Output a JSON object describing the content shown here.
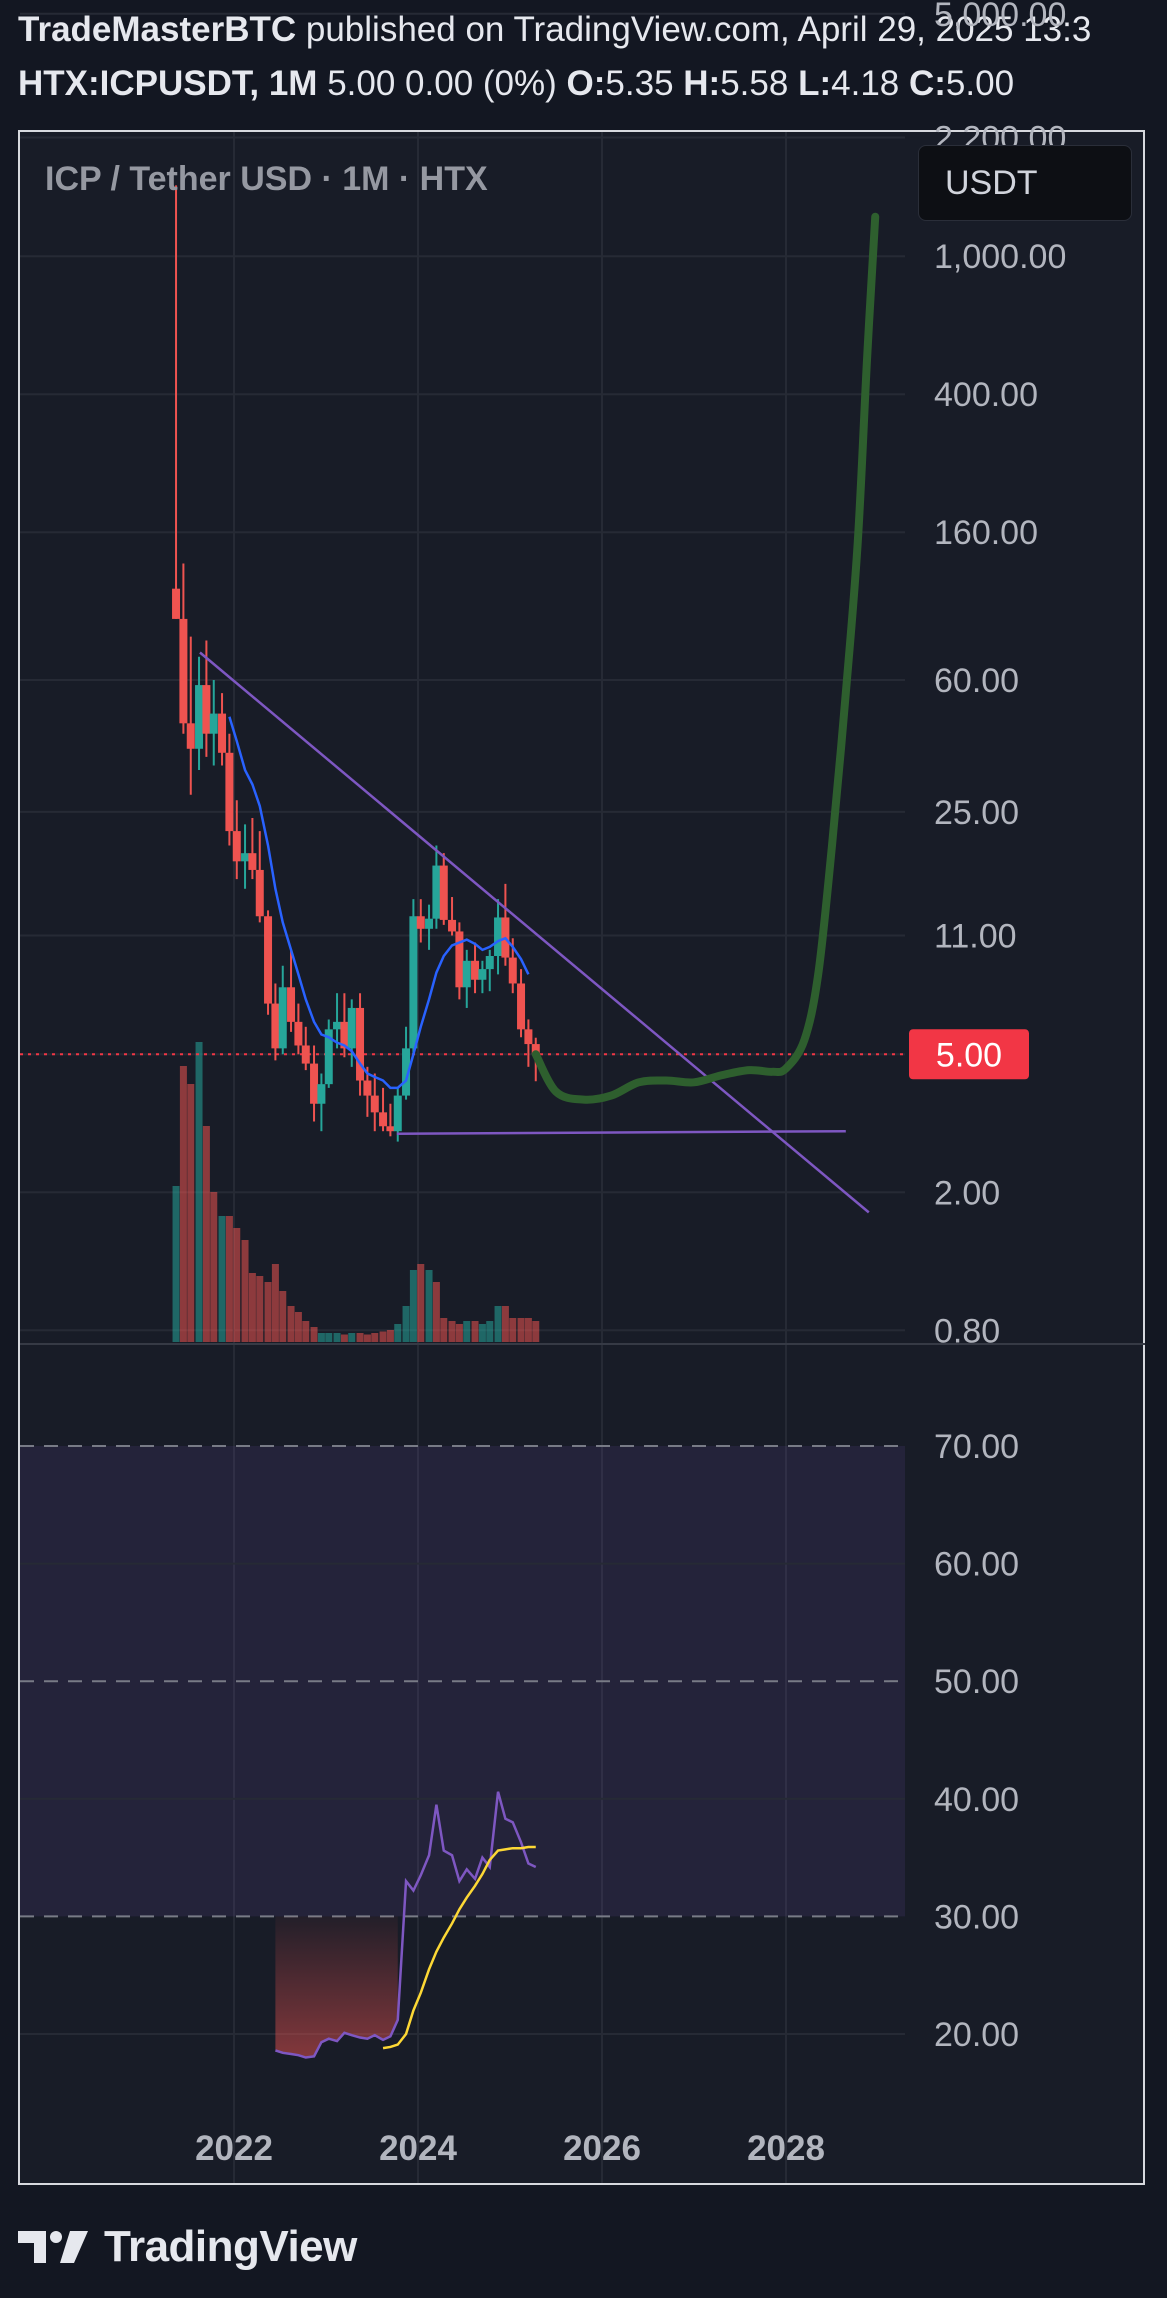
{
  "header": {
    "author": "TradeMasterBTC",
    "published": "published on TradingView.com, April 29, 2025 13:3",
    "symbol": "HTX:ICPUSDT, 1M",
    "change": "5.00 0.00 (0%)",
    "o_label": "O:",
    "o_value": "5.35",
    "h_label": "H:",
    "h_value": "5.58",
    "l_label": "L:",
    "l_value": "4.18",
    "c_label": "C:",
    "c_value": "5.00"
  },
  "chart_title": "ICP / Tether USD · 1M · HTX",
  "currency_button": "USDT",
  "footer": {
    "brand": "TradingView"
  },
  "colors": {
    "background": "#181c27",
    "up": "#26a69a",
    "down": "#ef5350",
    "ma": "#2962ff",
    "trendline": "#7e57c2",
    "projection": "#2e5f2e",
    "rsi": "#7e57c2",
    "rsi_ma": "#fdd835",
    "price_tag": "#f23645"
  },
  "chart_data": [
    {
      "type": "candlestick",
      "scale": "log",
      "price_axis_labels": [
        "5,000.00",
        "2,200.00",
        "1,000.00",
        "400.00",
        "160.00",
        "60.00",
        "25.00",
        "11.00",
        "5.00",
        "2.00",
        "0.80"
      ],
      "time_axis_labels": [
        "2022",
        "2024",
        "2026",
        "2028"
      ],
      "current_price_label": "5.00",
      "candles": [
        {
          "x": 2021.37,
          "o": 110,
          "h": 1600,
          "l": 90,
          "c": 90
        },
        {
          "x": 2021.45,
          "o": 90,
          "h": 130,
          "l": 42,
          "c": 45
        },
        {
          "x": 2021.53,
          "o": 45,
          "h": 80,
          "l": 28,
          "c": 38
        },
        {
          "x": 2021.62,
          "o": 38,
          "h": 70,
          "l": 33,
          "c": 58
        },
        {
          "x": 2021.7,
          "o": 58,
          "h": 78,
          "l": 36,
          "c": 42
        },
        {
          "x": 2021.78,
          "o": 42,
          "h": 60,
          "l": 34,
          "c": 48
        },
        {
          "x": 2021.87,
          "o": 48,
          "h": 55,
          "l": 34,
          "c": 37
        },
        {
          "x": 2021.95,
          "o": 37,
          "h": 42,
          "l": 20,
          "c": 22
        },
        {
          "x": 2022.03,
          "o": 22,
          "h": 27,
          "l": 16,
          "c": 18
        },
        {
          "x": 2022.12,
          "o": 18,
          "h": 23,
          "l": 15,
          "c": 19
        },
        {
          "x": 2022.2,
          "o": 19,
          "h": 24,
          "l": 16,
          "c": 17
        },
        {
          "x": 2022.28,
          "o": 17,
          "h": 22,
          "l": 12,
          "c": 12.5
        },
        {
          "x": 2022.37,
          "o": 12.5,
          "h": 13,
          "l": 6.5,
          "c": 7
        },
        {
          "x": 2022.45,
          "o": 7,
          "h": 8,
          "l": 4.8,
          "c": 5.2
        },
        {
          "x": 2022.53,
          "o": 5.2,
          "h": 9,
          "l": 5,
          "c": 7.8
        },
        {
          "x": 2022.62,
          "o": 7.8,
          "h": 10,
          "l": 5.8,
          "c": 6.2
        },
        {
          "x": 2022.7,
          "o": 6.2,
          "h": 7,
          "l": 5,
          "c": 5.3
        },
        {
          "x": 2022.78,
          "o": 5.3,
          "h": 6,
          "l": 4.5,
          "c": 4.7
        },
        {
          "x": 2022.87,
          "o": 4.7,
          "h": 5.3,
          "l": 3.2,
          "c": 3.6
        },
        {
          "x": 2022.95,
          "o": 3.6,
          "h": 4.4,
          "l": 3.0,
          "c": 4.1
        },
        {
          "x": 2023.03,
          "o": 4.1,
          "h": 6.3,
          "l": 4.0,
          "c": 5.9
        },
        {
          "x": 2023.12,
          "o": 5.9,
          "h": 7.5,
          "l": 5.2,
          "c": 6.2
        },
        {
          "x": 2023.2,
          "o": 6.2,
          "h": 7.5,
          "l": 4.9,
          "c": 5.2
        },
        {
          "x": 2023.28,
          "o": 5.2,
          "h": 7.2,
          "l": 4.6,
          "c": 6.8
        },
        {
          "x": 2023.37,
          "o": 6.8,
          "h": 7.5,
          "l": 3.8,
          "c": 4.2
        },
        {
          "x": 2023.45,
          "o": 4.2,
          "h": 4.6,
          "l": 3.3,
          "c": 3.8
        },
        {
          "x": 2023.53,
          "o": 3.8,
          "h": 4.4,
          "l": 3.0,
          "c": 3.4
        },
        {
          "x": 2023.62,
          "o": 3.4,
          "h": 4.0,
          "l": 3.0,
          "c": 3.1
        },
        {
          "x": 2023.7,
          "o": 3.1,
          "h": 3.6,
          "l": 2.9,
          "c": 3.0
        },
        {
          "x": 2023.78,
          "o": 3.0,
          "h": 4.0,
          "l": 2.8,
          "c": 3.8
        },
        {
          "x": 2023.87,
          "o": 3.8,
          "h": 6.0,
          "l": 3.7,
          "c": 5.2
        },
        {
          "x": 2023.95,
          "o": 5.2,
          "h": 14.0,
          "l": 5.0,
          "c": 12.5
        },
        {
          "x": 2024.03,
          "o": 12.5,
          "h": 14,
          "l": 10.5,
          "c": 11.5
        },
        {
          "x": 2024.12,
          "o": 11.5,
          "h": 13.5,
          "l": 10,
          "c": 12.3
        },
        {
          "x": 2024.2,
          "o": 12.3,
          "h": 20,
          "l": 11.5,
          "c": 17.5
        },
        {
          "x": 2024.28,
          "o": 17.5,
          "h": 19,
          "l": 11.8,
          "c": 12.2
        },
        {
          "x": 2024.37,
          "o": 12.2,
          "h": 14.2,
          "l": 11.0,
          "c": 11.3
        },
        {
          "x": 2024.45,
          "o": 11.3,
          "h": 12,
          "l": 7.2,
          "c": 7.8
        },
        {
          "x": 2024.53,
          "o": 7.8,
          "h": 10,
          "l": 6.8,
          "c": 9.3
        },
        {
          "x": 2024.62,
          "o": 9.3,
          "h": 10.5,
          "l": 7.5,
          "c": 8.2
        },
        {
          "x": 2024.7,
          "o": 8.2,
          "h": 9.3,
          "l": 7.5,
          "c": 8.8
        },
        {
          "x": 2024.78,
          "o": 8.8,
          "h": 10,
          "l": 7.6,
          "c": 9.6
        },
        {
          "x": 2024.87,
          "o": 9.6,
          "h": 14,
          "l": 8.5,
          "c": 12.4
        },
        {
          "x": 2024.95,
          "o": 12.4,
          "h": 15.5,
          "l": 9.0,
          "c": 9.5
        },
        {
          "x": 2025.03,
          "o": 9.5,
          "h": 10.8,
          "l": 7.5,
          "c": 8.0
        },
        {
          "x": 2025.12,
          "o": 8.0,
          "h": 8.8,
          "l": 5.6,
          "c": 5.9
        },
        {
          "x": 2025.2,
          "o": 5.9,
          "h": 6.3,
          "l": 4.6,
          "c": 5.35
        },
        {
          "x": 2025.28,
          "o": 5.35,
          "h": 5.58,
          "l": 4.18,
          "c": 5.0
        }
      ],
      "moving_average": [
        [
          2021.95,
          47
        ],
        [
          2022.03,
          40
        ],
        [
          2022.12,
          33
        ],
        [
          2022.2,
          30
        ],
        [
          2022.28,
          26
        ],
        [
          2022.37,
          20
        ],
        [
          2022.45,
          15
        ],
        [
          2022.53,
          12
        ],
        [
          2022.62,
          10
        ],
        [
          2022.7,
          8.5
        ],
        [
          2022.78,
          7.2
        ],
        [
          2022.87,
          6.2
        ],
        [
          2022.95,
          5.7
        ],
        [
          2023.03,
          5.6
        ],
        [
          2023.12,
          5.4
        ],
        [
          2023.2,
          5.3
        ],
        [
          2023.28,
          5.1
        ],
        [
          2023.37,
          4.7
        ],
        [
          2023.45,
          4.4
        ],
        [
          2023.53,
          4.3
        ],
        [
          2023.62,
          4.2
        ],
        [
          2023.7,
          4.0
        ],
        [
          2023.78,
          4.0
        ],
        [
          2023.87,
          4.2
        ],
        [
          2023.95,
          5.0
        ],
        [
          2024.03,
          6.0
        ],
        [
          2024.12,
          7.2
        ],
        [
          2024.2,
          8.6
        ],
        [
          2024.28,
          9.6
        ],
        [
          2024.37,
          10.3
        ],
        [
          2024.45,
          10.5
        ],
        [
          2024.53,
          10.7
        ],
        [
          2024.62,
          10.4
        ],
        [
          2024.7,
          10.0
        ],
        [
          2024.78,
          10.2
        ],
        [
          2024.87,
          10.6
        ],
        [
          2024.95,
          10.8
        ],
        [
          2025.03,
          10.2
        ],
        [
          2025.12,
          9.4
        ],
        [
          2025.2,
          8.5
        ]
      ],
      "volume": [
        {
          "x": 2021.37,
          "v": 0.52,
          "up": true
        },
        {
          "x": 2021.45,
          "v": 0.92,
          "up": false
        },
        {
          "x": 2021.53,
          "v": 0.86,
          "up": false
        },
        {
          "x": 2021.62,
          "v": 1.0,
          "up": true
        },
        {
          "x": 2021.7,
          "v": 0.72,
          "up": false
        },
        {
          "x": 2021.78,
          "v": 0.5,
          "up": false
        },
        {
          "x": 2021.87,
          "v": 0.42,
          "up": true
        },
        {
          "x": 2021.95,
          "v": 0.42,
          "up": false
        },
        {
          "x": 2022.03,
          "v": 0.38,
          "up": false
        },
        {
          "x": 2022.12,
          "v": 0.34,
          "up": false
        },
        {
          "x": 2022.2,
          "v": 0.23,
          "up": false
        },
        {
          "x": 2022.28,
          "v": 0.22,
          "up": false
        },
        {
          "x": 2022.37,
          "v": 0.2,
          "up": false
        },
        {
          "x": 2022.45,
          "v": 0.26,
          "up": false
        },
        {
          "x": 2022.53,
          "v": 0.17,
          "up": false
        },
        {
          "x": 2022.62,
          "v": 0.12,
          "up": false
        },
        {
          "x": 2022.7,
          "v": 0.1,
          "up": false
        },
        {
          "x": 2022.78,
          "v": 0.07,
          "up": false
        },
        {
          "x": 2022.87,
          "v": 0.05,
          "up": false
        },
        {
          "x": 2022.95,
          "v": 0.03,
          "up": true
        },
        {
          "x": 2023.03,
          "v": 0.03,
          "up": true
        },
        {
          "x": 2023.12,
          "v": 0.03,
          "up": true
        },
        {
          "x": 2023.2,
          "v": 0.025,
          "up": false
        },
        {
          "x": 2023.28,
          "v": 0.03,
          "up": true
        },
        {
          "x": 2023.37,
          "v": 0.03,
          "up": false
        },
        {
          "x": 2023.45,
          "v": 0.025,
          "up": false
        },
        {
          "x": 2023.53,
          "v": 0.03,
          "up": false
        },
        {
          "x": 2023.62,
          "v": 0.035,
          "up": false
        },
        {
          "x": 2023.7,
          "v": 0.04,
          "up": false
        },
        {
          "x": 2023.78,
          "v": 0.06,
          "up": true
        },
        {
          "x": 2023.87,
          "v": 0.12,
          "up": true
        },
        {
          "x": 2023.95,
          "v": 0.24,
          "up": true
        },
        {
          "x": 2024.03,
          "v": 0.26,
          "up": false
        },
        {
          "x": 2024.12,
          "v": 0.24,
          "up": true
        },
        {
          "x": 2024.2,
          "v": 0.2,
          "up": false
        },
        {
          "x": 2024.28,
          "v": 0.08,
          "up": false
        },
        {
          "x": 2024.37,
          "v": 0.07,
          "up": false
        },
        {
          "x": 2024.45,
          "v": 0.06,
          "up": false
        },
        {
          "x": 2024.53,
          "v": 0.07,
          "up": true
        },
        {
          "x": 2024.62,
          "v": 0.07,
          "up": false
        },
        {
          "x": 2024.7,
          "v": 0.06,
          "up": true
        },
        {
          "x": 2024.78,
          "v": 0.07,
          "up": true
        },
        {
          "x": 2024.87,
          "v": 0.12,
          "up": true
        },
        {
          "x": 2024.95,
          "v": 0.12,
          "up": false
        },
        {
          "x": 2025.03,
          "v": 0.08,
          "up": false
        },
        {
          "x": 2025.12,
          "v": 0.08,
          "up": false
        },
        {
          "x": 2025.2,
          "v": 0.08,
          "up": false
        },
        {
          "x": 2025.28,
          "v": 0.07,
          "up": false
        }
      ],
      "descending_trendline": [
        [
          2021.63,
          72
        ],
        [
          2028.9,
          1.75
        ]
      ],
      "support_line": [
        [
          2023.77,
          2.95
        ],
        [
          2028.65,
          3.0
        ]
      ],
      "projection": [
        [
          2025.28,
          5.0
        ],
        [
          2025.5,
          3.9
        ],
        [
          2025.8,
          3.7
        ],
        [
          2026.1,
          3.8
        ],
        [
          2026.4,
          4.15
        ],
        [
          2026.7,
          4.2
        ],
        [
          2027.0,
          4.15
        ],
        [
          2027.3,
          4.35
        ],
        [
          2027.6,
          4.5
        ],
        [
          2027.85,
          4.45
        ],
        [
          2028.0,
          4.55
        ],
        [
          2028.2,
          5.5
        ],
        [
          2028.35,
          8.5
        ],
        [
          2028.5,
          20
        ],
        [
          2028.65,
          55
        ],
        [
          2028.78,
          150
        ],
        [
          2028.88,
          500
        ],
        [
          2028.97,
          1300
        ]
      ]
    },
    {
      "type": "line",
      "name": "RSI",
      "axis_labels": [
        "70.00",
        "60.00",
        "50.00",
        "40.00",
        "30.00",
        "20.00"
      ],
      "band": [
        30,
        70
      ],
      "rsi": [
        [
          2022.45,
          18.6
        ],
        [
          2022.53,
          18.4
        ],
        [
          2022.62,
          18.3
        ],
        [
          2022.7,
          18.2
        ],
        [
          2022.78,
          18.0
        ],
        [
          2022.87,
          18.1
        ],
        [
          2022.95,
          19.3
        ],
        [
          2023.03,
          19.6
        ],
        [
          2023.12,
          19.4
        ],
        [
          2023.2,
          20.1
        ],
        [
          2023.28,
          19.9
        ],
        [
          2023.37,
          19.7
        ],
        [
          2023.45,
          19.6
        ],
        [
          2023.53,
          19.9
        ],
        [
          2023.62,
          19.5
        ],
        [
          2023.7,
          19.8
        ],
        [
          2023.78,
          21.2
        ],
        [
          2023.87,
          33.0
        ],
        [
          2023.95,
          32.2
        ],
        [
          2024.03,
          33.5
        ],
        [
          2024.12,
          35.2
        ],
        [
          2024.2,
          39.5
        ],
        [
          2024.28,
          35.6
        ],
        [
          2024.37,
          35.2
        ],
        [
          2024.45,
          33.0
        ],
        [
          2024.53,
          34.0
        ],
        [
          2024.62,
          33.2
        ],
        [
          2024.7,
          35.0
        ],
        [
          2024.78,
          34.2
        ],
        [
          2024.87,
          40.6
        ],
        [
          2024.95,
          38.3
        ],
        [
          2025.03,
          38.0
        ],
        [
          2025.12,
          36.3
        ],
        [
          2025.2,
          34.5
        ],
        [
          2025.28,
          34.2
        ]
      ],
      "rsi_ma": [
        [
          2023.62,
          18.8
        ],
        [
          2023.7,
          18.9
        ],
        [
          2023.78,
          19.1
        ],
        [
          2023.87,
          20.0
        ],
        [
          2023.95,
          22.0
        ],
        [
          2024.03,
          23.5
        ],
        [
          2024.12,
          25.5
        ],
        [
          2024.2,
          27.0
        ],
        [
          2024.28,
          28.2
        ],
        [
          2024.37,
          29.4
        ],
        [
          2024.45,
          30.6
        ],
        [
          2024.53,
          31.6
        ],
        [
          2024.62,
          32.6
        ],
        [
          2024.7,
          33.6
        ],
        [
          2024.78,
          34.8
        ],
        [
          2024.87,
          35.6
        ],
        [
          2024.95,
          35.7
        ],
        [
          2025.03,
          35.8
        ],
        [
          2025.12,
          35.8
        ],
        [
          2025.2,
          35.9
        ],
        [
          2025.28,
          35.9
        ]
      ]
    }
  ]
}
